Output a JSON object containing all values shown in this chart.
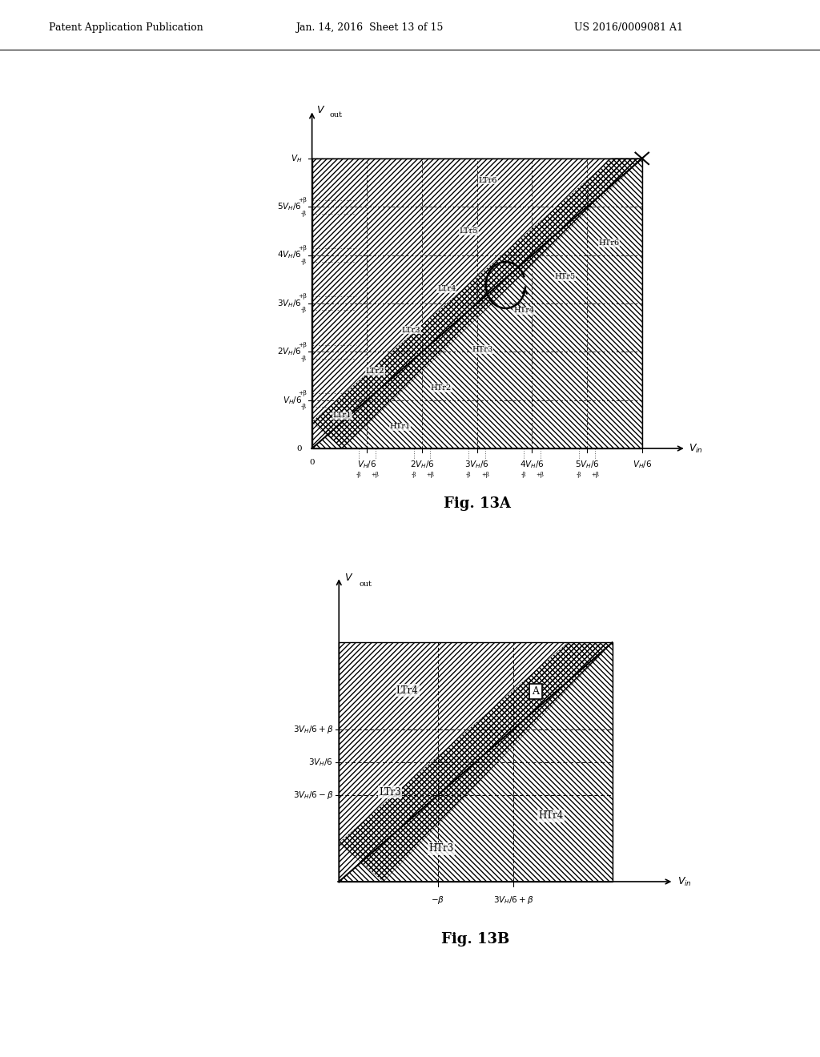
{
  "background_color": "#ffffff",
  "header_text": "Patent Application Publication",
  "header_date": "Jan. 14, 2016  Sheet 13 of 15",
  "header_patent": "US 2016/0009081 A1",
  "fig13a_title": "Fig. 13A",
  "fig13b_title": "Fig. 13B"
}
